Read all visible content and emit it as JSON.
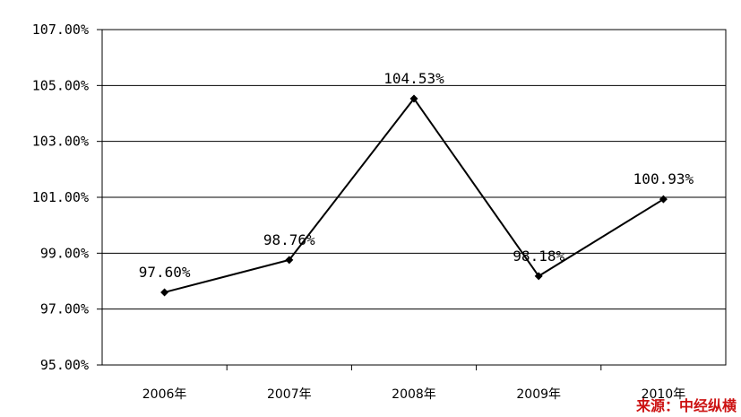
{
  "chart_data": {
    "type": "line",
    "categories": [
      "2006年",
      "2007年",
      "2008年",
      "2009年",
      "2010年"
    ],
    "series": [
      {
        "values": [
          97.6,
          98.76,
          104.53,
          98.18,
          100.93
        ]
      }
    ],
    "data_labels": [
      "97.60%",
      "98.76%",
      "104.53%",
      "98.18%",
      "100.93%"
    ],
    "y_ticks": [
      95,
      97,
      99,
      101,
      103,
      105,
      107
    ],
    "y_tick_labels": [
      "95.00%",
      "97.00%",
      "99.00%",
      "101.00%",
      "103.00%",
      "105.00%",
      "107.00%"
    ],
    "ylim": [
      95,
      107
    ],
    "grid": true,
    "title": "",
    "xlabel": "",
    "ylabel": "",
    "line_color": "#000000",
    "marker": "diamond"
  },
  "source_note": "来源：中经纵横"
}
